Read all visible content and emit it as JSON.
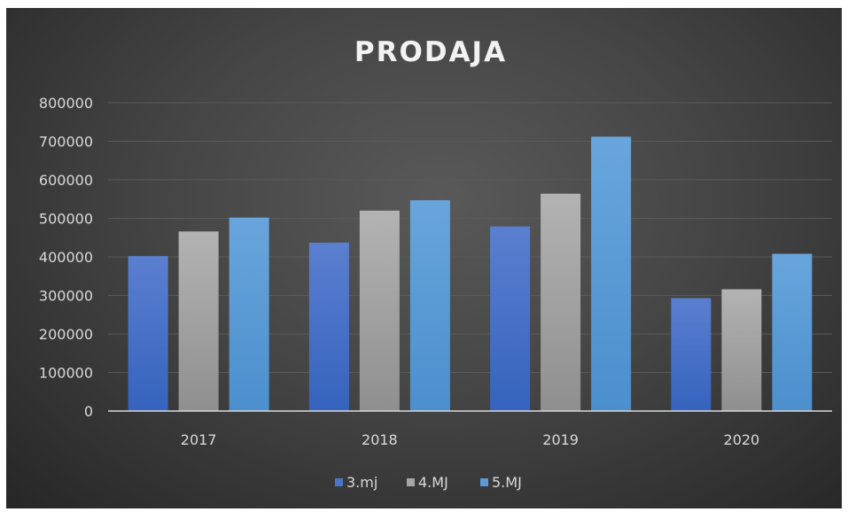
{
  "chart_data": {
    "type": "bar",
    "title": "PRODAJA",
    "xlabel": "",
    "ylabel": "",
    "categories": [
      "2017",
      "2018",
      "2019",
      "2020"
    ],
    "series": [
      {
        "name": "3.mj",
        "values": [
          402000,
          437000,
          479000,
          293000
        ]
      },
      {
        "name": "4.MJ",
        "values": [
          466000,
          520000,
          564000,
          316000
        ]
      },
      {
        "name": "5.MJ",
        "values": [
          502000,
          547000,
          712000,
          408000
        ]
      }
    ],
    "ylim": [
      0,
      800000
    ],
    "yticks": [
      "0",
      "100000",
      "200000",
      "300000",
      "400000",
      "500000",
      "600000",
      "700000",
      "800000"
    ],
    "grid": true,
    "legend_position": "bottom",
    "colors": {
      "3.mj": "#4a76c9",
      "4.MJ": "#a5a5a5",
      "5.MJ": "#5b9bd5",
      "background": "#404040",
      "text": "#d9d9d9",
      "grid": "#5a5a5a",
      "axis": "#d9d9d9"
    }
  }
}
